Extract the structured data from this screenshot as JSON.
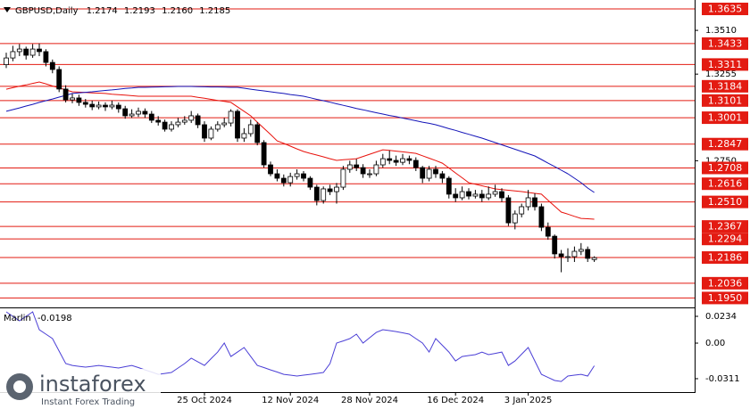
{
  "chart_data": [
    {
      "type": "candlestick",
      "title": "GBPUSD,Daily",
      "quote_labels": [
        "1.2174",
        "1.2193",
        "1.2160",
        "1.2185"
      ],
      "categories": [
        null,
        null,
        null,
        null,
        null,
        null,
        null,
        null,
        null,
        null,
        null,
        null,
        null,
        null,
        null,
        null,
        null,
        null,
        null,
        null,
        null,
        null,
        null,
        null,
        null,
        null,
        null,
        null,
        null,
        null,
        "25 Oct 2024",
        null,
        null,
        null,
        null,
        null,
        null,
        null,
        null,
        null,
        null,
        null,
        null,
        "12 Nov 2024",
        null,
        null,
        null,
        null,
        null,
        null,
        null,
        null,
        null,
        null,
        null,
        "28 Nov 2024",
        null,
        null,
        null,
        null,
        null,
        null,
        null,
        null,
        null,
        null,
        null,
        null,
        "16 Dec 2024",
        null,
        null,
        null,
        null,
        null,
        null,
        null,
        null,
        null,
        null,
        "3 Jan 2025",
        null,
        null,
        null,
        null,
        null,
        null,
        null,
        null,
        null,
        null
      ],
      "ohlc": [
        [
          1.331,
          1.338,
          1.329,
          1.3349
        ],
        [
          1.3349,
          1.342,
          1.333,
          1.3386
        ],
        [
          1.3386,
          1.343,
          1.336,
          1.3401
        ],
        [
          1.3401,
          1.3415,
          1.334,
          1.3365
        ],
        [
          1.3365,
          1.343,
          1.335,
          1.3401
        ],
        [
          1.3401,
          1.3434,
          1.336,
          1.3386
        ],
        [
          1.3386,
          1.34,
          1.33,
          1.3323
        ],
        [
          1.3323,
          1.334,
          1.326,
          1.3282
        ],
        [
          1.3282,
          1.33,
          1.315,
          1.3168
        ],
        [
          1.3168,
          1.319,
          1.309,
          1.3105
        ],
        [
          1.3105,
          1.314,
          1.3085,
          1.3116
        ],
        [
          1.3116,
          1.3135,
          1.307,
          1.309
        ],
        [
          1.309,
          1.311,
          1.306,
          1.3079
        ],
        [
          1.3079,
          1.31,
          1.3045,
          1.3064
        ],
        [
          1.3064,
          1.3095,
          1.305,
          1.3074
        ],
        [
          1.3074,
          1.309,
          1.304,
          1.3064
        ],
        [
          1.3064,
          1.31,
          1.305,
          1.3074
        ],
        [
          1.3074,
          1.309,
          1.303,
          1.3053
        ],
        [
          1.3053,
          1.307,
          1.2995,
          1.3012
        ],
        [
          1.3012,
          1.305,
          1.3,
          1.3022
        ],
        [
          1.3022,
          1.306,
          1.3005,
          1.3038
        ],
        [
          1.3038,
          1.3055,
          1.3,
          1.3022
        ],
        [
          1.3022,
          1.304,
          1.297,
          1.2986
        ],
        [
          1.2986,
          1.301,
          1.2955,
          1.2975
        ],
        [
          1.2975,
          1.299,
          1.292,
          1.2934
        ],
        [
          1.2934,
          1.298,
          1.292,
          1.296
        ],
        [
          1.296,
          1.3,
          1.2945,
          1.2975
        ],
        [
          1.2975,
          1.301,
          1.296,
          1.2986
        ],
        [
          1.2986,
          1.304,
          1.297,
          1.3012
        ],
        [
          1.3012,
          1.3025,
          1.294,
          1.296
        ],
        [
          1.296,
          1.298,
          1.286,
          1.2882
        ],
        [
          1.2882,
          1.295,
          1.287,
          1.2934
        ],
        [
          1.2934,
          1.298,
          1.292,
          1.296
        ],
        [
          1.296,
          1.3,
          1.2945,
          1.297
        ],
        [
          1.297,
          1.305,
          1.295,
          1.3038
        ],
        [
          1.3038,
          1.305,
          1.286,
          1.2882
        ],
        [
          1.2882,
          1.294,
          1.286,
          1.2908
        ],
        [
          1.2908,
          1.299,
          1.289,
          1.296
        ],
        [
          1.296,
          1.2975,
          1.284,
          1.2856
        ],
        [
          1.2856,
          1.287,
          1.271,
          1.2726
        ],
        [
          1.2726,
          1.2745,
          1.266,
          1.2674
        ],
        [
          1.2674,
          1.27,
          1.263,
          1.2648
        ],
        [
          1.2648,
          1.267,
          1.26,
          1.2622
        ],
        [
          1.2622,
          1.268,
          1.26,
          1.2658
        ],
        [
          1.2658,
          1.27,
          1.264,
          1.2674
        ],
        [
          1.2674,
          1.269,
          1.263,
          1.2648
        ],
        [
          1.2648,
          1.266,
          1.258,
          1.2596
        ],
        [
          1.2596,
          1.261,
          1.249,
          1.2518
        ],
        [
          1.2518,
          1.26,
          1.25,
          1.2586
        ],
        [
          1.2586,
          1.261,
          1.255,
          1.257
        ],
        [
          1.257,
          1.262,
          1.25,
          1.2596
        ],
        [
          1.2596,
          1.272,
          1.258,
          1.27
        ],
        [
          1.27,
          1.275,
          1.268,
          1.2726
        ],
        [
          1.2726,
          1.276,
          1.269,
          1.271
        ],
        [
          1.271,
          1.273,
          1.265,
          1.2674
        ],
        [
          1.2674,
          1.27,
          1.265,
          1.2674
        ],
        [
          1.2674,
          1.275,
          1.266,
          1.2726
        ],
        [
          1.2726,
          1.279,
          1.271,
          1.2762
        ],
        [
          1.2762,
          1.281,
          1.273,
          1.2752
        ],
        [
          1.2752,
          1.278,
          1.272,
          1.2741
        ],
        [
          1.2741,
          1.279,
          1.2725,
          1.2762
        ],
        [
          1.2762,
          1.278,
          1.273,
          1.2752
        ],
        [
          1.2752,
          1.277,
          1.269,
          1.271
        ],
        [
          1.271,
          1.272,
          1.262,
          1.2648
        ],
        [
          1.2648,
          1.272,
          1.263,
          1.27
        ],
        [
          1.27,
          1.272,
          1.265,
          1.2674
        ],
        [
          1.2674,
          1.269,
          1.262,
          1.2648
        ],
        [
          1.2648,
          1.266,
          1.253,
          1.2555
        ],
        [
          1.2555,
          1.259,
          1.251,
          1.2534
        ],
        [
          1.2534,
          1.26,
          1.252,
          1.257
        ],
        [
          1.257,
          1.259,
          1.2525,
          1.2544
        ],
        [
          1.2544,
          1.258,
          1.253,
          1.2555
        ],
        [
          1.2555,
          1.258,
          1.251,
          1.2534
        ],
        [
          1.2534,
          1.26,
          1.252,
          1.2555
        ],
        [
          1.2555,
          1.261,
          1.254,
          1.257
        ],
        [
          1.257,
          1.259,
          1.251,
          1.2534
        ],
        [
          1.2534,
          1.255,
          1.237,
          1.2388
        ],
        [
          1.2388,
          1.246,
          1.235,
          1.244
        ],
        [
          1.244,
          1.25,
          1.242,
          1.2482
        ],
        [
          1.2482,
          1.258,
          1.246,
          1.2534
        ],
        [
          1.2534,
          1.256,
          1.246,
          1.2482
        ],
        [
          1.2482,
          1.25,
          1.234,
          1.2362
        ],
        [
          1.2362,
          1.239,
          1.229,
          1.231
        ],
        [
          1.231,
          1.232,
          1.218,
          1.2207
        ],
        [
          1.2207,
          1.223,
          1.21,
          1.2191
        ],
        [
          1.2191,
          1.224,
          1.216,
          1.2191
        ],
        [
          1.2191,
          1.225,
          1.216,
          1.2222
        ],
        [
          1.2222,
          1.227,
          1.22,
          1.2233
        ],
        [
          1.2233,
          1.225,
          1.216,
          1.2181
        ],
        [
          1.2174,
          1.2193,
          1.216,
          1.2185
        ]
      ],
      "up_color": "#ffffff",
      "down_color": "#000000",
      "candle_outline": "#000000",
      "series": [
        {
          "color": "#e8120c",
          "values": [
            1.3167,
            1.3176,
            1.3184,
            1.3192,
            1.3201,
            1.3209,
            1.3198,
            1.3186,
            1.3175,
            1.3163,
            1.3152,
            1.315,
            1.3148,
            1.3146,
            1.3144,
            1.3142,
            1.3138,
            1.3135,
            1.3132,
            1.3129,
            1.3126,
            1.3126,
            1.3126,
            1.3126,
            1.3126,
            1.3126,
            1.3126,
            1.3126,
            1.3126,
            1.312,
            1.3114,
            1.3108,
            1.3101,
            1.3096,
            1.309,
            1.3064,
            1.3038,
            1.3012,
            1.2975,
            1.2939,
            1.2903,
            1.2866,
            1.2851,
            1.2835,
            1.2819,
            1.2804,
            1.2793,
            1.2783,
            1.2773,
            1.2762,
            1.2752,
            1.2756,
            1.2759,
            1.2762,
            1.2775,
            1.2788,
            1.2801,
            1.2814,
            1.281,
            1.2806,
            1.2802,
            1.2798,
            1.2793,
            1.2779,
            1.2765,
            1.2751,
            1.2736,
            1.2708,
            1.2679,
            1.2651,
            1.2622,
            1.2613,
            1.2604,
            1.2595,
            1.2586,
            1.2582,
            1.2578,
            1.2574,
            1.257,
            1.2565,
            1.256,
            1.2555,
            1.252,
            1.2485,
            1.2451,
            1.2439,
            1.2426,
            1.2414,
            1.2412,
            1.2409
          ]
        },
        {
          "color": "#1414b8",
          "values": [
            1.3038,
            1.3048,
            1.3058,
            1.3069,
            1.3079,
            1.309,
            1.31,
            1.311,
            1.3121,
            1.3131,
            1.3142,
            1.3145,
            1.3149,
            1.3152,
            1.3156,
            1.316,
            1.3163,
            1.3167,
            1.3171,
            1.3174,
            1.3178,
            1.3178,
            1.3179,
            1.318,
            1.3181,
            1.3182,
            1.3183,
            1.3183,
            1.3183,
            1.3182,
            1.3181,
            1.318,
            1.318,
            1.3179,
            1.3178,
            1.3178,
            1.3173,
            1.3167,
            1.3162,
            1.3157,
            1.3152,
            1.3147,
            1.3142,
            1.3136,
            1.3131,
            1.3126,
            1.3117,
            1.3108,
            1.31,
            1.3091,
            1.3082,
            1.3073,
            1.3064,
            1.3055,
            1.3047,
            1.3038,
            1.303,
            1.3022,
            1.3014,
            1.3007,
            1.2999,
            1.2991,
            1.2983,
            1.2975,
            1.2968,
            1.296,
            1.2949,
            1.2937,
            1.2927,
            1.2915,
            1.2904,
            1.2893,
            1.2882,
            1.2869,
            1.2856,
            1.2843,
            1.283,
            1.2817,
            1.2804,
            1.2791,
            1.2778,
            1.2757,
            1.2736,
            1.2716,
            1.2695,
            1.2674,
            1.2648,
            1.2622,
            1.2591,
            1.2565
          ]
        }
      ],
      "levels": [
        1.3635,
        1.3433,
        1.3311,
        1.3184,
        1.3101,
        1.3001,
        1.2847,
        1.2708,
        1.2616,
        {
          "value": 1.251,
          "label": "1.2510"
        },
        1.2367,
        1.2294,
        1.2186,
        1.2036,
        {
          "value": 1.195,
          "label": "1.1950"
        }
      ],
      "level_color": "#e31b12",
      "ylim": [
        1.1895,
        1.3687
      ],
      "yticks": [
        {
          "value": 1.351,
          "label": "1.3510"
        },
        1.3255,
        {
          "value": 1.275,
          "label": "1.2750"
        }
      ]
    },
    {
      "type": "line",
      "series": [
        {
          "name": "Marlin",
          "color": "#4b3fd6",
          "values": [
            0.0273,
            0.0234,
            0.0195,
            0.0234,
            0.0273,
            0.0117,
            0.0078,
            0.0039,
            -0.007,
            -0.0179,
            -0.0195,
            -0.0203,
            -0.021,
            -0.0203,
            -0.0195,
            -0.0203,
            -0.021,
            -0.0218,
            -0.0206,
            -0.0195,
            -0.0214,
            -0.0234,
            -0.0253,
            -0.0273,
            -0.0265,
            -0.0257,
            -0.0218,
            -0.0179,
            -0.0132,
            -0.0164,
            -0.0195,
            -0.0136,
            -0.0078,
            0,
            -0.0117,
            -0.0078,
            -0.0039,
            -0.0117,
            -0.0195,
            -0.0214,
            -0.0234,
            -0.0253,
            -0.0273,
            -0.028,
            -0.0288,
            -0.028,
            -0.0273,
            -0.0265,
            -0.0257,
            -0.0179,
            0,
            0.0019,
            0.0039,
            0.0078,
            0,
            0.0047,
            0.0093,
            0.0117,
            0.0109,
            0.0101,
            0.009,
            0.0078,
            0.0039,
            0,
            -0.0078,
            0.0039,
            -0.0019,
            -0.0078,
            -0.0156,
            -0.0117,
            -0.0109,
            -0.0101,
            -0.0078,
            -0.0101,
            -0.009,
            -0.0078,
            -0.0195,
            -0.0156,
            -0.0097,
            -0.0039,
            -0.0156,
            -0.0273,
            -0.03,
            -0.0327,
            -0.0335,
            -0.0288,
            -0.028,
            -0.0273,
            -0.0288,
            -0.0198
          ]
        }
      ],
      "ylim": [
        -0.0428,
        0.0304
      ],
      "yticks": [
        0.0234,
        {
          "value": 0,
          "label": "0.00"
        },
        -0.0311
      ]
    }
  ],
  "watermark": {
    "brand": "instaforex",
    "tagline": "Instant Forex Trading"
  }
}
